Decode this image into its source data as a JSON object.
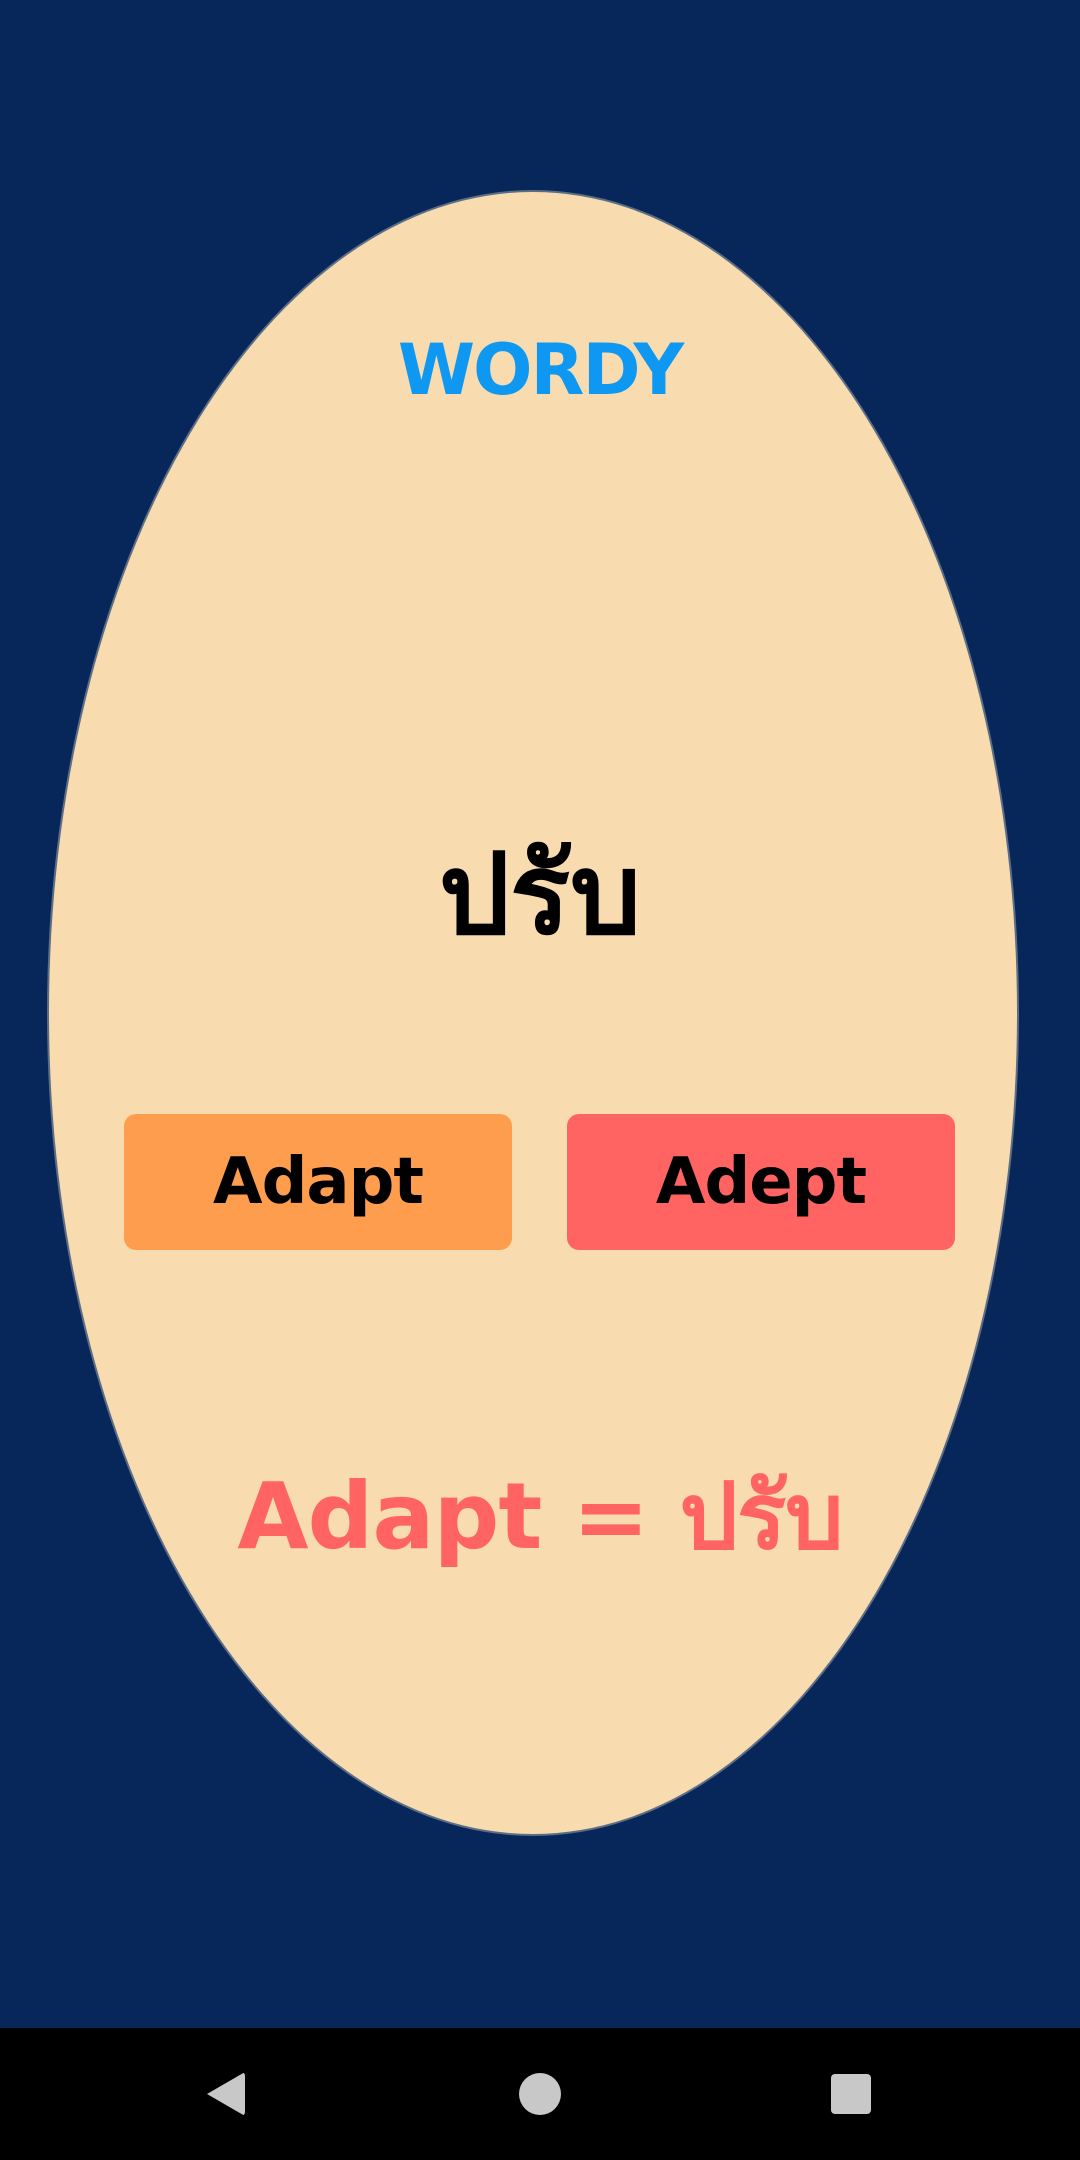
{
  "app": {
    "title": "WORDY"
  },
  "question": {
    "word": "ปรับ"
  },
  "choices": [
    {
      "label": "Adapt",
      "color": "#ff9d4e"
    },
    {
      "label": "Adept",
      "color": "#ff6462"
    }
  ],
  "result": {
    "text": "Adapt = ปรับ",
    "color": "#ff6462"
  },
  "colors": {
    "background": "#07275b",
    "card": "#f8dcb0",
    "title": "#0f98f2"
  },
  "navbar": {
    "back_icon": "back-triangle-icon",
    "home_icon": "home-circle-icon",
    "recents_icon": "recents-square-icon"
  }
}
